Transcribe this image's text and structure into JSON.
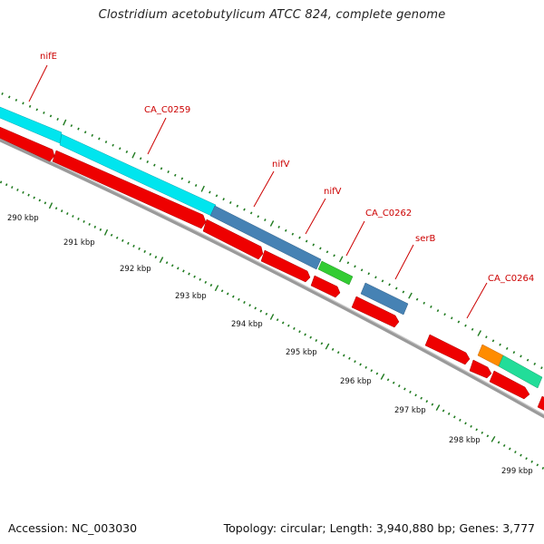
{
  "title": "Clostridium acetobutylicum ATCC 824, complete genome",
  "footer": {
    "accession": "Accession: NC_003030",
    "stats": "Topology: circular; Length: 3,940,880 bp; Genes: 3,777"
  },
  "gene_labels": [
    "nifE",
    "CA_C0259",
    "nifV",
    "nifV",
    "CA_C0262",
    "serB",
    "CA_C0264"
  ],
  "kbp_labels": [
    "290 kbp",
    "291 kbp",
    "292 kbp",
    "293 kbp",
    "294 kbp",
    "295 kbp",
    "296 kbp",
    "297 kbp",
    "298 kbp",
    "299 kbp"
  ],
  "colors": {
    "cyan": "#00e5ee",
    "steelblue": "#4682b4",
    "green": "#33cc33",
    "orange": "#ff8c00",
    "aquamarine": "#22dd99",
    "red": "#ee0000",
    "backbone": "#808080",
    "tick": "#1f7a1f",
    "label": "#cc0000"
  }
}
